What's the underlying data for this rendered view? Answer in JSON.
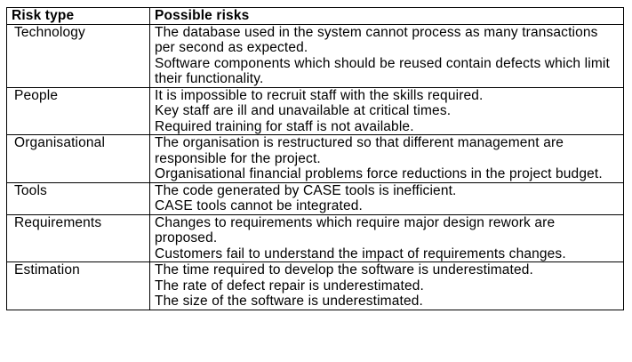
{
  "table": {
    "header": {
      "type": "Risk type",
      "risks": "Possible risks"
    },
    "rows": [
      {
        "type": "Technology",
        "risks": [
          "The database used in the system cannot process as many transactions per second as expected.",
          "Software components which should be reused contain defects which limit their functionality."
        ]
      },
      {
        "type": "People",
        "risks": [
          "It is impossible to recruit staff with the skills required.",
          "Key staff are ill and unavailable at critical times.",
          "Required training for staff is not available."
        ]
      },
      {
        "type": "Organisational",
        "risks": [
          "The organisation is restructured so that different management are responsible for the project.",
          "Organisational financial problems force reductions in the project budget."
        ]
      },
      {
        "type": "Tools",
        "risks": [
          "The code generated by CASE tools is inefficient.",
          "CASE tools cannot be integrated."
        ]
      },
      {
        "type": "Requirements",
        "risks": [
          "Changes to requirements which require major design rework are proposed.",
          "Customers fail to understand the impact of requirements changes."
        ]
      },
      {
        "type": "Estimation",
        "risks": [
          "The time required to develop the software is underestimated.",
          "The rate of defect repair is underestimated.",
          "The size of the software is underestimated."
        ]
      }
    ]
  }
}
